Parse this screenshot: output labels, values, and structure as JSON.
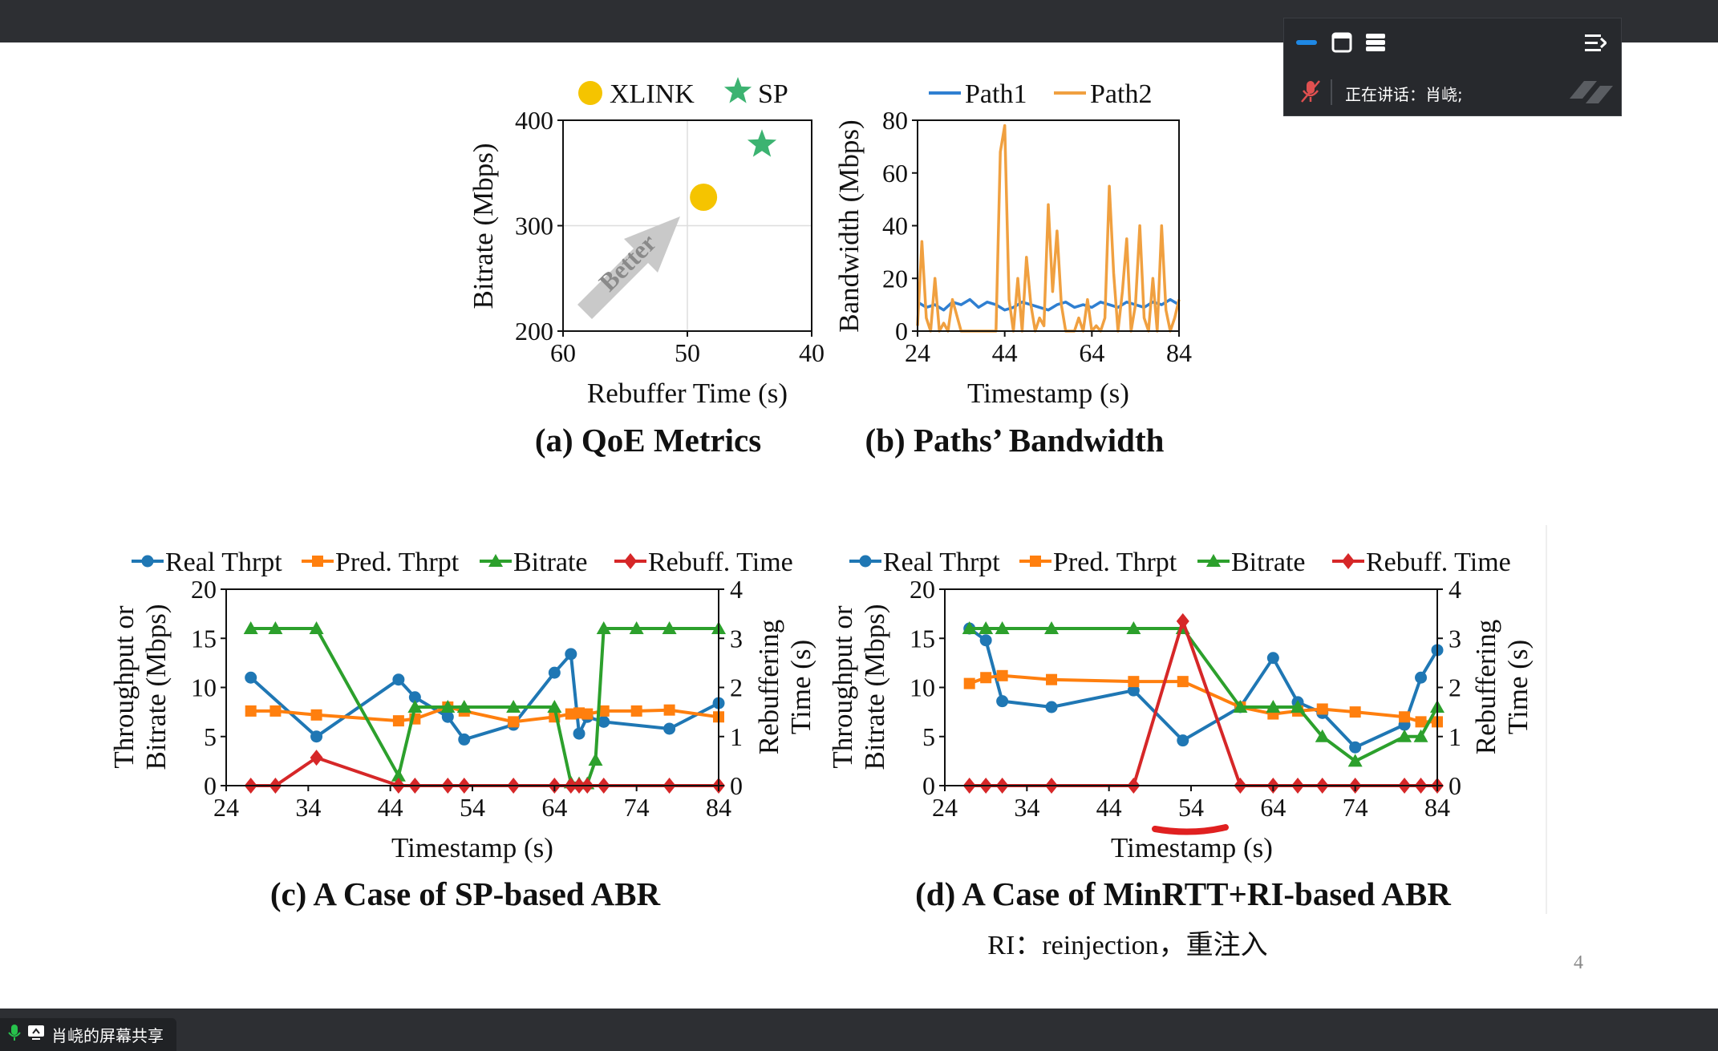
{
  "window": {
    "share_label": "肖峣的屏幕共享",
    "speaker_label": "正在讲话：肖峣;",
    "page_number": "4",
    "note": "RI：reinjection，重注入",
    "colors": {
      "bar": "#2d2f33",
      "panel": "#27292d",
      "accent": "#1e88e5"
    },
    "icons": [
      "minimize-icon",
      "window-icon",
      "list-icon",
      "collapse-icon",
      "mic-muted-icon",
      "screen-share-icon"
    ]
  },
  "charts": {
    "a": {
      "caption": "(a) QoE Metrics",
      "xlabel": "Rebuffer Time (s)",
      "ylabel": "Bitrate (Mbps)",
      "arrow_label": "Better",
      "legend": [
        "XLINK",
        "SP"
      ]
    },
    "b": {
      "caption": "(b) Paths’ Bandwidth",
      "xlabel": "Timestamp (s)",
      "ylabel": "Bandwidth (Mbps)",
      "legend": [
        "Path1",
        "Path2"
      ]
    },
    "c": {
      "caption": "(c) A Case of SP-based ABR",
      "xlabel": "Timestamp (s)",
      "ylabel_left_1": "Throughput or",
      "ylabel_left_2": "Bitrate (Mbps)",
      "ylabel_right_1": "Rebuffering",
      "ylabel_right_2": "Time (s)",
      "legend": [
        "Real Thrpt",
        "Pred. Thrpt",
        "Bitrate",
        "Rebuff. Time"
      ]
    },
    "d": {
      "caption": "(d) A Case of MinRTT+RI-based ABR",
      "xlabel": "Timestamp (s)",
      "ylabel_left_1": "Throughput or",
      "ylabel_left_2": "Bitrate (Mbps)",
      "ylabel_right_1": "Rebuffering",
      "ylabel_right_2": "Time (s)",
      "legend": [
        "Real Thrpt",
        "Pred. Thrpt",
        "Bitrate",
        "Rebuff. Time"
      ]
    }
  },
  "chart_data": [
    {
      "type": "scatter",
      "series": [
        {
          "name": "XLINK",
          "x": [
            48.7
          ],
          "y": [
            327
          ],
          "color": "#f5c400",
          "marker": "circle"
        },
        {
          "name": "SP",
          "x": [
            44
          ],
          "y": [
            377
          ],
          "color": "#3cb371",
          "marker": "star"
        }
      ],
      "xlim": [
        60,
        40
      ],
      "ylim": [
        200,
        400
      ],
      "xticks": [
        60,
        50,
        40
      ],
      "yticks": [
        200,
        300,
        400
      ],
      "grid": true,
      "legend_position": "top"
    },
    {
      "type": "line",
      "series": [
        {
          "name": "Path1",
          "color": "#2f7fd1",
          "x": [
            24,
            26,
            28,
            30,
            32,
            34,
            36,
            38,
            40,
            42,
            44,
            46,
            48,
            50,
            52,
            54,
            56,
            58,
            60,
            62,
            64,
            66,
            68,
            70,
            72,
            74,
            76,
            78,
            80,
            82,
            84
          ],
          "y": [
            11,
            9,
            10,
            8,
            11,
            10,
            12,
            9,
            11,
            10,
            8,
            9,
            11,
            10,
            9,
            8,
            10,
            11,
            9,
            10,
            9,
            11,
            10,
            9,
            11,
            10,
            9,
            11,
            10,
            12,
            10
          ]
        },
        {
          "name": "Path2",
          "color": "#f0a040",
          "x": [
            24,
            25,
            26,
            27,
            28,
            29,
            30,
            31,
            32,
            33,
            34,
            35,
            36,
            37,
            38,
            39,
            40,
            41,
            42,
            43,
            44,
            45,
            46,
            47,
            48,
            49,
            50,
            51,
            52,
            53,
            54,
            55,
            56,
            57,
            58,
            59,
            60,
            61,
            62,
            63,
            64,
            65,
            66,
            67,
            68,
            69,
            70,
            71,
            72,
            73,
            74,
            75,
            76,
            77,
            78,
            79,
            80,
            81,
            82,
            83,
            84
          ],
          "y": [
            2,
            34,
            5,
            0,
            20,
            0,
            3,
            0,
            12,
            6,
            0,
            0,
            0,
            0,
            0,
            0,
            0,
            0,
            0,
            68,
            78,
            12,
            0,
            20,
            0,
            28,
            10,
            0,
            5,
            2,
            48,
            15,
            38,
            10,
            0,
            0,
            0,
            5,
            0,
            12,
            0,
            2,
            0,
            5,
            55,
            22,
            0,
            15,
            35,
            0,
            10,
            40,
            5,
            0,
            20,
            0,
            40,
            8,
            0,
            5,
            12
          ]
        }
      ],
      "xlim": [
        24,
        84
      ],
      "ylim": [
        0,
        80
      ],
      "xticks": [
        24,
        44,
        64,
        84
      ],
      "yticks": [
        0,
        20,
        40,
        60,
        80
      ],
      "legend_position": "top"
    },
    {
      "type": "line",
      "x_ticks": [
        24,
        34,
        44,
        54,
        64,
        74,
        84
      ],
      "ylim": [
        0,
        20
      ],
      "y2lim": [
        0,
        4
      ],
      "yticks": [
        0,
        5,
        10,
        15,
        20
      ],
      "y2ticks": [
        0,
        1,
        2,
        3,
        4
      ],
      "series": [
        {
          "name": "Real Thrpt",
          "axis": "left",
          "color": "#1f77b4",
          "marker": "circle",
          "x": [
            27,
            35,
            45,
            47,
            51,
            53,
            59,
            64,
            66,
            67,
            68,
            70,
            78,
            84
          ],
          "y": [
            11,
            5,
            10.8,
            9,
            7,
            4.7,
            6.2,
            11.5,
            13.4,
            5.3,
            7,
            6.5,
            5.8,
            8.4
          ]
        },
        {
          "name": "Pred. Thrpt",
          "axis": "left",
          "color": "#ff7f0e",
          "marker": "square",
          "x": [
            27,
            30,
            35,
            45,
            47,
            51,
            53,
            59,
            64,
            66,
            67,
            68,
            70,
            74,
            78,
            84
          ],
          "y": [
            7.6,
            7.6,
            7.2,
            6.6,
            6.8,
            8,
            7.6,
            6.5,
            7,
            7.3,
            7.4,
            7.3,
            7.6,
            7.6,
            7.7,
            7
          ]
        },
        {
          "name": "Bitrate",
          "axis": "left",
          "color": "#2ca02c",
          "marker": "triangle",
          "x": [
            27,
            30,
            35,
            45,
            47,
            51,
            53,
            59,
            64,
            66,
            67,
            68,
            69,
            70,
            74,
            78,
            84
          ],
          "y": [
            16,
            16,
            16,
            1,
            8,
            8,
            8,
            8,
            8,
            0.3,
            0.2,
            0.2,
            2.6,
            16,
            16,
            16,
            16
          ]
        },
        {
          "name": "Rebuff. Time",
          "axis": "right",
          "color": "#d62728",
          "marker": "diamond",
          "x": [
            27,
            30,
            35,
            45,
            47,
            51,
            53,
            59,
            64,
            66,
            67,
            68,
            70,
            78,
            84
          ],
          "y": [
            0,
            0,
            0.57,
            0,
            0,
            0,
            0,
            0,
            0,
            0,
            0,
            0,
            0,
            0,
            0
          ]
        }
      ],
      "legend_position": "top"
    },
    {
      "type": "line",
      "x_ticks": [
        24,
        34,
        44,
        54,
        64,
        74,
        84
      ],
      "ylim": [
        0,
        20
      ],
      "y2lim": [
        0,
        4
      ],
      "yticks": [
        0,
        5,
        10,
        15,
        20
      ],
      "y2ticks": [
        0,
        1,
        2,
        3,
        4
      ],
      "series": [
        {
          "name": "Real Thrpt",
          "axis": "left",
          "color": "#1f77b4",
          "marker": "circle",
          "x": [
            27,
            29,
            31,
            37,
            47,
            53,
            60,
            64,
            67,
            70,
            74,
            80,
            82,
            84
          ],
          "y": [
            16,
            14.8,
            8.6,
            8,
            9.7,
            4.6,
            8,
            13,
            8.5,
            7.4,
            3.9,
            6.2,
            11,
            13.8
          ]
        },
        {
          "name": "Pred. Thrpt",
          "axis": "left",
          "color": "#ff7f0e",
          "marker": "square",
          "x": [
            27,
            29,
            31,
            37,
            47,
            53,
            60,
            64,
            67,
            70,
            74,
            80,
            82,
            84
          ],
          "y": [
            10.4,
            11,
            11.2,
            10.8,
            10.6,
            10.6,
            8,
            7.3,
            7.6,
            7.8,
            7.5,
            7,
            6.5,
            6.5
          ]
        },
        {
          "name": "Bitrate",
          "axis": "left",
          "color": "#2ca02c",
          "marker": "triangle",
          "x": [
            27,
            29,
            31,
            37,
            47,
            53,
            60,
            64,
            67,
            70,
            74,
            80,
            82,
            84
          ],
          "y": [
            16,
            16,
            16,
            16,
            16,
            16,
            8,
            8,
            8,
            5,
            2.5,
            5,
            5,
            8
          ]
        },
        {
          "name": "Rebuff. Time",
          "axis": "right",
          "color": "#d62728",
          "marker": "diamond",
          "x": [
            27,
            29,
            31,
            37,
            47,
            53,
            60,
            64,
            67,
            70,
            74,
            80,
            82,
            84
          ],
          "y": [
            0,
            0,
            0,
            0,
            0,
            3.35,
            0,
            0,
            0,
            0,
            0,
            0,
            0,
            0
          ]
        }
      ],
      "legend_position": "top"
    }
  ]
}
